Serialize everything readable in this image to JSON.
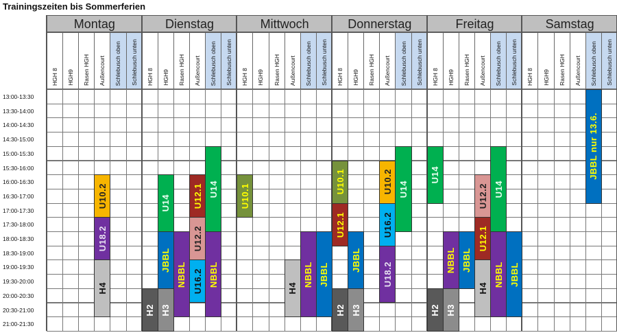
{
  "title": "Trainingszeiten bis Sommerferien",
  "days": [
    "Montag",
    "Dienstag",
    "Mittwoch",
    "Donnerstag",
    "Freitag",
    "Samstag"
  ],
  "columns": [
    "HGH 8",
    "HGH9",
    "Rasen HGH",
    "Außencourt",
    "Schlebusch oben",
    "Schlebusch unten"
  ],
  "highlighted_columns": [
    "Schlebusch oben",
    "Schlebusch unten"
  ],
  "times": [
    "13:00-13:30",
    "13:30-14:00",
    "14:00-14:30",
    "14:30-15:00",
    "15:00-15:30",
    "15:30-16:00",
    "16:00-16:30",
    "16:30-17:00",
    "17:00-17:30",
    "17:30-18:00",
    "18:00-18:30",
    "18:30-19:00",
    "19:00-19:30",
    "19:30-20:00",
    "20:00-20:30",
    "20:30-21:00",
    "21:00-21:30"
  ],
  "colors": {
    "U10.2": "#f7b500",
    "U18.2": "#7030a0",
    "H4": "#bfbfbf",
    "H2": "#595959",
    "H3": "#8c8c8c",
    "U14": "#00b050",
    "JBBL": "#0070c0",
    "NBBL": "#7030a0",
    "U12.1": "#9e2a24",
    "U12.2": "#d99694",
    "U16.2": "#00b0f0",
    "U10.1": "#76923c",
    "header": "#bfbfbf",
    "schlebusch": "#c6d9f0"
  },
  "blocks": [
    {
      "label": "U10.2",
      "day": "Montag",
      "column": "Außencourt",
      "from": "16:00",
      "to": "17:30",
      "color": "#f7b500",
      "text": "#222222"
    },
    {
      "label": "U18.2",
      "day": "Montag",
      "column": "Außencourt",
      "from": "17:30",
      "to": "19:00",
      "color": "#7030a0",
      "text": "#e6e0f0"
    },
    {
      "label": "H4",
      "day": "Montag",
      "column": "Außencourt",
      "from": "19:00",
      "to": "21:00",
      "color": "#bfbfbf",
      "text": "#111111"
    },
    {
      "label": "H2",
      "day": "Dienstag",
      "column": "HGH 8",
      "from": "20:00",
      "to": "21:30",
      "color": "#595959",
      "text": "#ffffff"
    },
    {
      "label": "U14",
      "day": "Dienstag",
      "column": "HGH9",
      "from": "16:00",
      "to": "18:00",
      "color": "#00b050",
      "text": "#e8fff0"
    },
    {
      "label": "JBBL",
      "day": "Dienstag",
      "column": "HGH9",
      "from": "18:00",
      "to": "20:00",
      "color": "#0070c0",
      "text": "#ffff00"
    },
    {
      "label": "H3",
      "day": "Dienstag",
      "column": "HGH9",
      "from": "20:00",
      "to": "21:30",
      "color": "#8c8c8c",
      "text": "#ffffff"
    },
    {
      "label": "NBBL",
      "day": "Dienstag",
      "column": "Rasen HGH",
      "from": "18:00",
      "to": "21:00",
      "color": "#7030a0",
      "text": "#ffff00"
    },
    {
      "label": "U12.1",
      "day": "Dienstag",
      "column": "Außencourt",
      "from": "16:00",
      "to": "17:30",
      "color": "#9e2a24",
      "text": "#ffff00"
    },
    {
      "label": "U12.2",
      "day": "Dienstag",
      "column": "Außencourt",
      "from": "17:30",
      "to": "19:00",
      "color": "#d99694",
      "text": "#222222"
    },
    {
      "label": "U16.2",
      "day": "Dienstag",
      "column": "Außencourt",
      "from": "19:00",
      "to": "20:30",
      "color": "#00b0f0",
      "text": "#111111"
    },
    {
      "label": "U14",
      "day": "Dienstag",
      "column": "Schlebusch oben",
      "from": "15:00",
      "to": "18:00",
      "color": "#00b050",
      "text": "#e8fff0"
    },
    {
      "label": "NBBL",
      "day": "Dienstag",
      "column": "Schlebusch oben",
      "from": "18:00",
      "to": "21:00",
      "color": "#7030a0",
      "text": "#ffff00"
    },
    {
      "label": "U10.1",
      "day": "Mittwoch",
      "column": "HGH 8",
      "from": "16:00",
      "to": "17:30",
      "color": "#76923c",
      "text": "#ffff00"
    },
    {
      "label": "H4",
      "day": "Mittwoch",
      "column": "Außencourt",
      "from": "19:00",
      "to": "21:00",
      "color": "#bfbfbf",
      "text": "#111111"
    },
    {
      "label": "NBBL",
      "day": "Mittwoch",
      "column": "Schlebusch oben",
      "from": "18:00",
      "to": "21:00",
      "color": "#7030a0",
      "text": "#ffff00"
    },
    {
      "label": "JBBL",
      "day": "Mittwoch",
      "column": "Schlebusch unten",
      "from": "18:00",
      "to": "21:00",
      "color": "#0070c0",
      "text": "#ffff00"
    },
    {
      "label": "U10.1",
      "day": "Donnerstag",
      "column": "HGH 8",
      "from": "15:30",
      "to": "17:00",
      "color": "#76923c",
      "text": "#ffff00"
    },
    {
      "label": "U12.1",
      "day": "Donnerstag",
      "column": "HGH 8",
      "from": "17:00",
      "to": "18:30",
      "color": "#9e2a24",
      "text": "#ffff00"
    },
    {
      "label": "H2",
      "day": "Donnerstag",
      "column": "HGH 8",
      "from": "20:00",
      "to": "21:30",
      "color": "#595959",
      "text": "#ffffff"
    },
    {
      "label": "JBBL",
      "day": "Donnerstag",
      "column": "HGH9",
      "from": "18:00",
      "to": "20:00",
      "color": "#0070c0",
      "text": "#ffff00"
    },
    {
      "label": "H3",
      "day": "Donnerstag",
      "column": "HGH9",
      "from": "20:00",
      "to": "21:30",
      "color": "#8c8c8c",
      "text": "#ffffff"
    },
    {
      "label": "U10.2",
      "day": "Donnerstag",
      "column": "Außencourt",
      "from": "15:30",
      "to": "17:00",
      "color": "#f7b500",
      "text": "#222222"
    },
    {
      "label": "U16.2",
      "day": "Donnerstag",
      "column": "Außencourt",
      "from": "17:00",
      "to": "18:30",
      "color": "#00b0f0",
      "text": "#111111"
    },
    {
      "label": "U18.2",
      "day": "Donnerstag",
      "column": "Außencourt",
      "from": "18:30",
      "to": "20:30",
      "color": "#7030a0",
      "text": "#e6e0f0"
    },
    {
      "label": "U14",
      "day": "Donnerstag",
      "column": "Schlebusch oben",
      "from": "15:00",
      "to": "18:00",
      "color": "#00b050",
      "text": "#e8fff0"
    },
    {
      "label": "U14",
      "day": "Freitag",
      "column": "HGH 8",
      "from": "15:00",
      "to": "17:00",
      "color": "#00b050",
      "text": "#e8fff0"
    },
    {
      "label": "H2",
      "day": "Freitag",
      "column": "HGH 8",
      "from": "20:00",
      "to": "21:30",
      "color": "#595959",
      "text": "#ffffff"
    },
    {
      "label": "NBBL",
      "day": "Freitag",
      "column": "HGH9",
      "from": "18:00",
      "to": "20:00",
      "color": "#7030a0",
      "text": "#ffff00"
    },
    {
      "label": "H3",
      "day": "Freitag",
      "column": "HGH9",
      "from": "20:00",
      "to": "21:30",
      "color": "#8c8c8c",
      "text": "#ffffff"
    },
    {
      "label": "JBBL",
      "day": "Freitag",
      "column": "Rasen HGH",
      "from": "18:00",
      "to": "20:00",
      "color": "#0070c0",
      "text": "#ffff00"
    },
    {
      "label": "U12.2",
      "day": "Freitag",
      "column": "Außencourt",
      "from": "16:00",
      "to": "17:30",
      "color": "#d99694",
      "text": "#222222"
    },
    {
      "label": "U12.1",
      "day": "Freitag",
      "column": "Außencourt",
      "from": "17:30",
      "to": "19:00",
      "color": "#9e2a24",
      "text": "#ffff00"
    },
    {
      "label": "H4",
      "day": "Freitag",
      "column": "Außencourt",
      "from": "19:00",
      "to": "21:00",
      "color": "#bfbfbf",
      "text": "#111111"
    },
    {
      "label": "U14",
      "day": "Freitag",
      "column": "Schlebusch oben",
      "from": "15:00",
      "to": "18:00",
      "color": "#00b050",
      "text": "#e8fff0"
    },
    {
      "label": "NBBL",
      "day": "Freitag",
      "column": "Schlebusch oben",
      "from": "18:00",
      "to": "21:00",
      "color": "#7030a0",
      "text": "#ffff00"
    },
    {
      "label": "JBBL",
      "day": "Freitag",
      "column": "Schlebusch unten",
      "from": "18:00",
      "to": "21:00",
      "color": "#0070c0",
      "text": "#ffff00"
    },
    {
      "label": "JBBL nur 13.6.",
      "day": "Samstag",
      "column": "Schlebusch oben",
      "from": "13:00",
      "to": "17:00",
      "color": "#0070c0",
      "text": "#ffff00"
    }
  ]
}
